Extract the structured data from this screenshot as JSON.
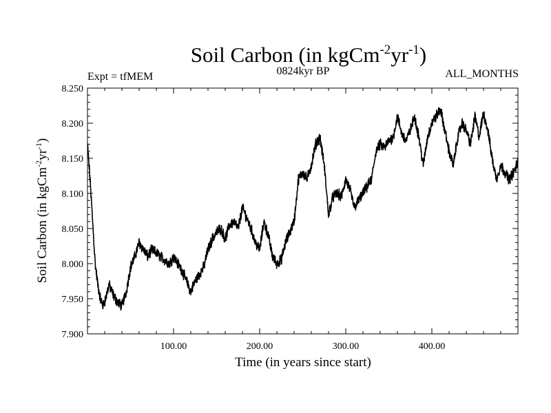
{
  "chart_data": {
    "type": "line",
    "title": "Soil Carbon (in kgCm",
    "title_sup1": "-2",
    "title_mid": "yr",
    "title_sup2": "-1",
    "title_end": ")",
    "subtitle_left": "Expt = tfMEM",
    "subtitle_center": "0824kyr BP",
    "subtitle_right": "ALL_MONTHS",
    "xlabel": "Time (in years since start)",
    "ylabel": "Soil Carbon (in kgCm",
    "ylabel_sup1": "-2",
    "ylabel_mid": "yr",
    "ylabel_sup2": "-1",
    "ylabel_end": ")",
    "xlim": [
      0,
      500
    ],
    "ylim": [
      7.9,
      8.25
    ],
    "xticks": [
      100,
      200,
      300,
      400
    ],
    "xtick_labels": [
      "100.00",
      "200.00",
      "300.00",
      "400.00"
    ],
    "yticks": [
      7.9,
      7.95,
      8.0,
      8.05,
      8.1,
      8.15,
      8.2,
      8.25
    ],
    "ytick_labels": [
      "7.900",
      "7.950",
      "8.000",
      "8.050",
      "8.100",
      "8.150",
      "8.200",
      "8.250"
    ],
    "series": [
      {
        "name": "Soil Carbon",
        "color": "#000000",
        "x": [
          0,
          3,
          6,
          9,
          12,
          15,
          18,
          21,
          25,
          30,
          35,
          40,
          45,
          50,
          55,
          60,
          65,
          70,
          75,
          80,
          85,
          90,
          95,
          100,
          105,
          110,
          115,
          120,
          125,
          130,
          135,
          140,
          145,
          150,
          155,
          160,
          165,
          170,
          175,
          180,
          185,
          190,
          195,
          200,
          205,
          210,
          215,
          220,
          225,
          230,
          235,
          240,
          245,
          250,
          255,
          260,
          265,
          270,
          275,
          280,
          285,
          290,
          295,
          300,
          305,
          310,
          315,
          320,
          325,
          330,
          335,
          340,
          345,
          350,
          355,
          360,
          365,
          370,
          375,
          380,
          385,
          390,
          395,
          400,
          405,
          410,
          415,
          420,
          425,
          430,
          435,
          440,
          445,
          450,
          455,
          460,
          465,
          470,
          475,
          480,
          485,
          490,
          495,
          500
        ],
        "y": [
          8.17,
          8.12,
          8.06,
          8.0,
          7.97,
          7.95,
          7.94,
          7.95,
          7.97,
          7.955,
          7.945,
          7.94,
          7.96,
          7.995,
          8.01,
          8.03,
          8.02,
          8.01,
          8.02,
          8.015,
          8.01,
          8.005,
          8.0,
          8.01,
          8.0,
          7.99,
          7.975,
          7.96,
          7.975,
          7.985,
          7.995,
          8.02,
          8.035,
          8.045,
          8.05,
          8.035,
          8.055,
          8.06,
          8.05,
          8.08,
          8.065,
          8.05,
          8.03,
          8.02,
          8.06,
          8.04,
          8.01,
          8.0,
          8.005,
          8.03,
          8.045,
          8.06,
          8.12,
          8.13,
          8.12,
          8.14,
          8.17,
          8.18,
          8.14,
          8.07,
          8.095,
          8.1,
          8.095,
          8.12,
          8.105,
          8.08,
          8.09,
          8.1,
          8.11,
          8.12,
          8.16,
          8.17,
          8.165,
          8.175,
          8.18,
          8.21,
          8.185,
          8.175,
          8.19,
          8.21,
          8.18,
          8.14,
          8.18,
          8.2,
          8.21,
          8.22,
          8.19,
          8.16,
          8.14,
          8.18,
          8.2,
          8.19,
          8.17,
          8.21,
          8.18,
          8.215,
          8.19,
          8.15,
          8.12,
          8.14,
          8.13,
          8.12,
          8.13,
          8.145
        ]
      }
    ]
  }
}
